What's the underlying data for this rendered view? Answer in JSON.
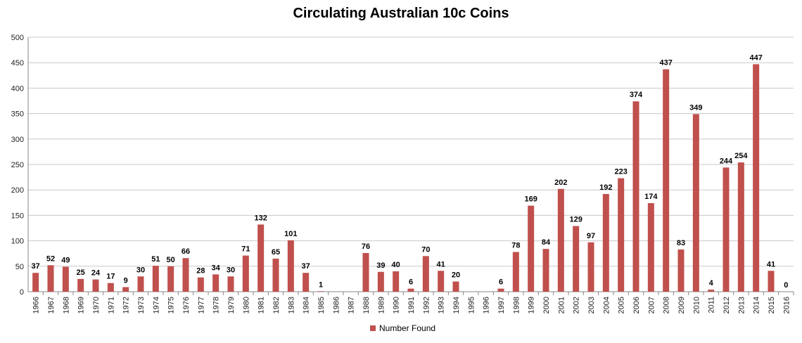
{
  "chart_data": {
    "type": "bar",
    "title": "Circulating Australian 10c Coins",
    "xlabel": "",
    "ylabel": "",
    "ylim": [
      0,
      500
    ],
    "yticks": [
      0,
      50,
      100,
      150,
      200,
      250,
      300,
      350,
      400,
      450,
      500
    ],
    "grid": true,
    "legend_position": "bottom",
    "bar_color": "#C0504D",
    "categories": [
      "1966",
      "1967",
      "1968",
      "1969",
      "1970",
      "1971",
      "1972",
      "1973",
      "1974",
      "1975",
      "1976",
      "1977",
      "1978",
      "1979",
      "1980",
      "1981",
      "1982",
      "1983",
      "1984",
      "1985",
      "1986",
      "1987",
      "1988",
      "1989",
      "1990",
      "1991",
      "1992",
      "1993",
      "1994",
      "1995",
      "1996",
      "1997",
      "1998",
      "1999",
      "2000",
      "2001",
      "2002",
      "2003",
      "2004",
      "2005",
      "2006",
      "2007",
      "2008",
      "2009",
      "2010",
      "2011",
      "2012",
      "2013",
      "2014",
      "2015",
      "2016"
    ],
    "series": [
      {
        "name": "Number Found",
        "values": [
          37,
          52,
          49,
          25,
          24,
          17,
          9,
          30,
          51,
          50,
          66,
          28,
          34,
          30,
          71,
          132,
          65,
          101,
          37,
          1,
          null,
          null,
          76,
          39,
          40,
          6,
          70,
          41,
          20,
          null,
          null,
          6,
          78,
          169,
          84,
          202,
          129,
          97,
          192,
          223,
          374,
          174,
          437,
          83,
          349,
          4,
          244,
          254,
          447,
          41,
          0
        ],
        "labels": [
          "37",
          "52",
          "49",
          "25",
          "24",
          "17",
          "9",
          "30",
          "51",
          "50",
          "66",
          "28",
          "34",
          "30",
          "71",
          "132",
          "65",
          "101",
          "37",
          "1",
          "",
          "",
          "76",
          "39",
          "40",
          "6",
          "70",
          "41",
          "20",
          "",
          "",
          "6",
          "78",
          "169",
          "84",
          "202",
          "129",
          "97",
          "192",
          "223",
          "374",
          "174",
          "437",
          "83",
          "349",
          "4",
          "244",
          "254",
          "447",
          "41",
          "0"
        ]
      }
    ]
  }
}
